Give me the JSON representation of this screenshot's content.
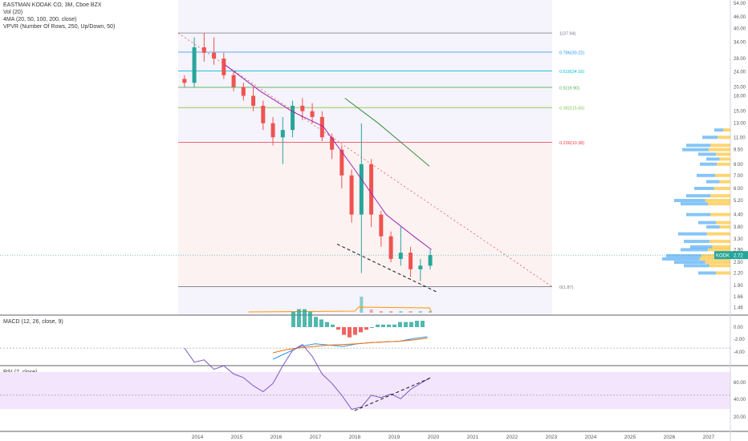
{
  "header": {
    "symbol": "EASTMAN KODAK CO, 3M, Cboe BZX",
    "vol": "Vol (20)",
    "ma": "4MA (20, 50, 100, 200, close)",
    "vpvr": "VPVR (Number Of Rows, 250, Up/Down, 50)"
  },
  "macd_panel": {
    "label": "MACD (12, 26, close, 9)",
    "ticks": [
      "0.00",
      "-2.00",
      "-4.00"
    ]
  },
  "rsi_panel": {
    "label": "RSI (7, close)",
    "ticks": [
      "60.00",
      "40.00",
      "20.00"
    ]
  },
  "price_badge": {
    "ticker": "KODK",
    "value": "2.72"
  },
  "colors": {
    "up": "#26a69a",
    "down": "#ef5350",
    "ma20": "#9c27b0",
    "ma50": "#388e3c",
    "rsi": "#7e57c2"
  },
  "chart_data": {
    "type": "candlestick",
    "price_axis": {
      "scale": "log",
      "ticks": [
        "54.00",
        "46.00",
        "40.00",
        "34.00",
        "28.00",
        "24.00",
        "20.00",
        "18.00",
        "15.00",
        "13.00",
        "11.00",
        "9.50",
        "8.00",
        "7.00",
        "6.00",
        "5.20",
        "4.40",
        "3.80",
        "3.30",
        "2.90",
        "2.50",
        "2.20",
        "1.90",
        "1.66",
        "1.46"
      ]
    },
    "time_axis": {
      "labels": [
        "2014",
        "2015",
        "2016",
        "2017",
        "2018",
        "2019",
        "2020",
        "2021",
        "2022",
        "2023",
        "2024",
        "2025",
        "2026",
        "2027"
      ]
    },
    "fib_levels": [
      {
        "label": "1(37.94)",
        "price": 37.94,
        "color": "#787b86"
      },
      {
        "label": "0.786(30.22)",
        "price": 30.22,
        "color": "#2196f3"
      },
      {
        "label": "0.618(24.16)",
        "price": 24.16,
        "color": "#00bcd4"
      },
      {
        "label": "0.5(19.90)",
        "price": 19.9,
        "color": "#4caf50"
      },
      {
        "label": "0.382(15.65)",
        "price": 15.65,
        "color": "#8bc34a"
      },
      {
        "label": "0.236(10.38)",
        "price": 10.38,
        "color": "#f23645"
      },
      {
        "label": "0(1.87)",
        "price": 1.87,
        "color": "#787b86"
      }
    ],
    "candles": [
      {
        "t": 2013.67,
        "o": 22,
        "h": 23,
        "l": 20,
        "c": 21
      },
      {
        "t": 2013.92,
        "o": 21,
        "h": 36,
        "l": 20,
        "c": 32
      },
      {
        "t": 2014.17,
        "o": 32,
        "h": 38,
        "l": 27,
        "c": 30
      },
      {
        "t": 2014.42,
        "o": 30,
        "h": 36,
        "l": 26,
        "c": 28
      },
      {
        "t": 2014.67,
        "o": 28,
        "h": 30,
        "l": 22,
        "c": 23
      },
      {
        "t": 2014.92,
        "o": 23,
        "h": 24,
        "l": 19,
        "c": 20
      },
      {
        "t": 2015.17,
        "o": 20,
        "h": 21,
        "l": 17,
        "c": 18
      },
      {
        "t": 2015.42,
        "o": 18,
        "h": 20,
        "l": 15,
        "c": 16
      },
      {
        "t": 2015.67,
        "o": 16,
        "h": 17,
        "l": 12,
        "c": 13
      },
      {
        "t": 2015.92,
        "o": 13,
        "h": 14,
        "l": 10,
        "c": 11
      },
      {
        "t": 2016.17,
        "o": 11,
        "h": 14,
        "l": 8,
        "c": 12
      },
      {
        "t": 2016.42,
        "o": 12,
        "h": 17,
        "l": 11,
        "c": 16
      },
      {
        "t": 2016.67,
        "o": 16,
        "h": 17.5,
        "l": 13.5,
        "c": 15
      },
      {
        "t": 2016.92,
        "o": 15,
        "h": 16.5,
        "l": 13,
        "c": 14
      },
      {
        "t": 2017.17,
        "o": 14,
        "h": 15,
        "l": 10.5,
        "c": 11
      },
      {
        "t": 2017.42,
        "o": 11,
        "h": 11.5,
        "l": 8.5,
        "c": 9.5
      },
      {
        "t": 2017.67,
        "o": 9.5,
        "h": 10,
        "l": 6,
        "c": 7
      },
      {
        "t": 2017.92,
        "o": 7,
        "h": 7.5,
        "l": 4,
        "c": 4.4
      },
      {
        "t": 2018.17,
        "o": 4.4,
        "h": 13,
        "l": 2.2,
        "c": 8
      },
      {
        "t": 2018.42,
        "o": 8,
        "h": 8.5,
        "l": 3.8,
        "c": 4.4
      },
      {
        "t": 2018.67,
        "o": 4.4,
        "h": 4.6,
        "l": 3,
        "c": 3.4
      },
      {
        "t": 2018.92,
        "o": 3.4,
        "h": 3.6,
        "l": 2.5,
        "c": 2.6
      },
      {
        "t": 2019.17,
        "o": 2.6,
        "h": 3.8,
        "l": 2.4,
        "c": 2.8
      },
      {
        "t": 2019.42,
        "o": 2.8,
        "h": 3,
        "l": 2.1,
        "c": 2.3
      },
      {
        "t": 2019.67,
        "o": 2.3,
        "h": 2.6,
        "l": 2,
        "c": 2.4
      },
      {
        "t": 2019.92,
        "o": 2.4,
        "h": 2.9,
        "l": 2.3,
        "c": 2.72
      }
    ],
    "ma20": [
      [
        2014.7,
        26
      ],
      [
        2015.6,
        19
      ],
      [
        2016.4,
        15
      ],
      [
        2017.2,
        12.5
      ],
      [
        2018.0,
        7.5
      ],
      [
        2018.8,
        4.4
      ],
      [
        2019.5,
        3.4
      ],
      [
        2019.95,
        2.9
      ]
    ],
    "ma50": [
      [
        2017.75,
        17.5
      ],
      [
        2018.6,
        13
      ],
      [
        2019.4,
        9.5
      ],
      [
        2019.9,
        7.8
      ]
    ],
    "volume": [
      0,
      0,
      0,
      0,
      0,
      0,
      0,
      0,
      0,
      0,
      0,
      0,
      0,
      0,
      0,
      0,
      0,
      0,
      10,
      2,
      1,
      1,
      1,
      1,
      1,
      1
    ],
    "macd": {
      "hist": [
        0.6,
        0.7,
        0.7,
        0.6,
        0.4,
        0.3,
        0.2,
        0.1,
        -0.1,
        -0.3,
        -0.4,
        -0.3,
        -0.2,
        -0.1,
        0,
        0.1,
        0.1,
        0.1,
        0.1,
        0.2,
        0.2,
        0.2,
        0.25,
        0.25
      ],
      "macd": [
        -5,
        -4,
        -3,
        -2.6,
        -2.8,
        -3,
        -2.6,
        -2.4,
        -2.3,
        -2.2,
        -1.8,
        -1.5
      ],
      "signal": [
        -4,
        -3.5,
        -3.2,
        -3,
        -2.8,
        -2.7,
        -2.6,
        -2.4,
        -2.3,
        -2.2,
        -2.0,
        -1.7
      ]
    },
    "rsi": [
      70,
      58,
      60,
      52,
      55,
      48,
      45,
      38,
      33,
      40,
      55,
      68,
      73,
      63,
      48,
      40,
      30,
      18,
      20,
      30,
      28,
      31,
      27,
      35,
      40,
      45
    ]
  }
}
